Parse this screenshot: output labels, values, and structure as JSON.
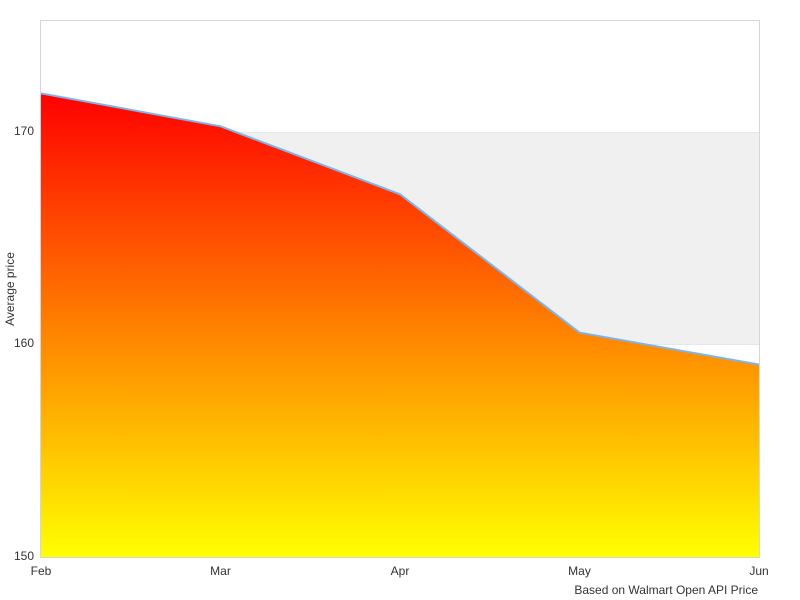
{
  "chart_data": {
    "type": "area",
    "categories": [
      "Feb",
      "Mar",
      "Apr",
      "May",
      "Jun"
    ],
    "values": [
      171.8,
      170.25,
      167.05,
      160.55,
      159.05
    ],
    "title": "",
    "xlabel": "",
    "ylabel": "Average price",
    "ylim": [
      150,
      175.2
    ],
    "yticks": [
      150,
      160,
      170
    ],
    "plot_band": {
      "from": 160,
      "to": 170,
      "color": "#f0f0f0"
    },
    "legend": "none",
    "grid": "horizontal",
    "credits": "Based on Walmart Open API Price",
    "colors": {
      "line": "#7cb5ec",
      "area_gradient_top": "#ff0000",
      "area_gradient_bottom": "#ffff00",
      "gridline": "#e7e7e7",
      "axis_border": "#d6d6d6",
      "text": "#333333"
    }
  }
}
